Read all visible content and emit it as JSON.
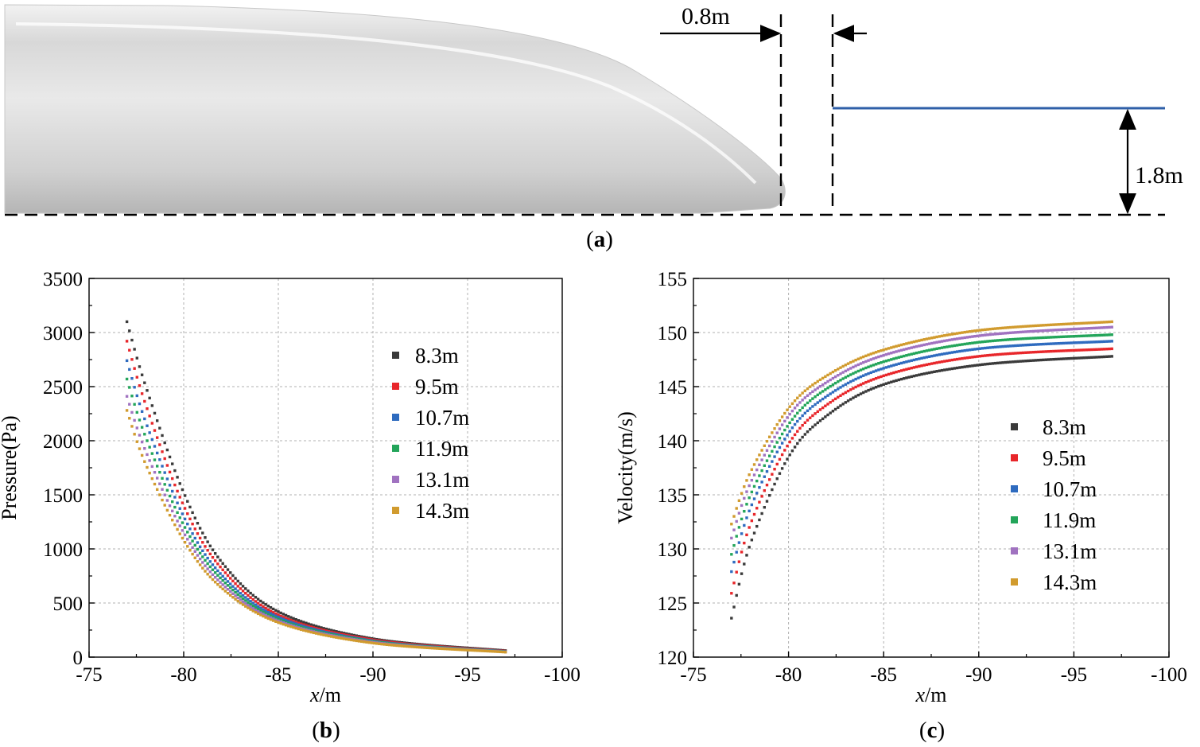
{
  "figure": {
    "panel_a": {
      "label": "a",
      "gap_dimension": "0.8m",
      "height_dimension": "1.8m",
      "colors": {
        "body_light": "#f4f4f4",
        "body_dark": "#bdbdbd",
        "line": "#2f5fa8"
      }
    },
    "panel_b": {
      "label": "b"
    },
    "panel_c": {
      "label": "c"
    }
  },
  "chart_data": [
    {
      "type": "scatter",
      "title": "",
      "xlabel_italic": "x",
      "xlabel_rest": "/m",
      "ylabel": "Pressure(Pa)",
      "xlim": [
        -75,
        -100
      ],
      "ylim": [
        0,
        3500
      ],
      "xticks": [
        -75,
        -80,
        -85,
        -90,
        -95,
        -100
      ],
      "yticks": [
        0,
        500,
        1000,
        1500,
        2000,
        2500,
        3000,
        3500
      ],
      "grid": true,
      "legend_position": "upper-right",
      "x_range": [
        -77,
        -97
      ],
      "series": [
        {
          "name": "8.3m",
          "color": "#3a3a3a",
          "x": [
            -77,
            -78,
            -80,
            -82,
            -85,
            -90,
            -97
          ],
          "y": [
            3100,
            2500,
            1520,
            880,
            420,
            170,
            60
          ]
        },
        {
          "name": "9.5m",
          "color": "#e8262a",
          "x": [
            -77,
            -78,
            -80,
            -82,
            -85,
            -90,
            -97
          ],
          "y": [
            2920,
            2330,
            1400,
            820,
            390,
            160,
            55
          ]
        },
        {
          "name": "10.7m",
          "color": "#2e6bbf",
          "x": [
            -77,
            -78,
            -80,
            -82,
            -85,
            -90,
            -97
          ],
          "y": [
            2740,
            2170,
            1300,
            760,
            370,
            150,
            52
          ]
        },
        {
          "name": "11.9m",
          "color": "#23a55a",
          "x": [
            -77,
            -78,
            -80,
            -82,
            -85,
            -90,
            -97
          ],
          "y": [
            2570,
            2030,
            1220,
            720,
            350,
            145,
            50
          ]
        },
        {
          "name": "13.1m",
          "color": "#a072c0",
          "x": [
            -77,
            -78,
            -80,
            -82,
            -85,
            -90,
            -97
          ],
          "y": [
            2410,
            1900,
            1150,
            680,
            335,
            138,
            48
          ]
        },
        {
          "name": "14.3m",
          "color": "#d19b2e",
          "x": [
            -77,
            -78,
            -80,
            -82,
            -85,
            -90,
            -97
          ],
          "y": [
            2280,
            1780,
            1080,
            640,
            320,
            130,
            46
          ]
        }
      ]
    },
    {
      "type": "scatter",
      "title": "",
      "xlabel_italic": "x",
      "xlabel_rest": "/m",
      "ylabel": "Velocity(m/s)",
      "xlim": [
        -75,
        -100
      ],
      "ylim": [
        120,
        155
      ],
      "xticks": [
        -75,
        -80,
        -85,
        -90,
        -95,
        -100
      ],
      "yticks": [
        120,
        125,
        130,
        135,
        140,
        145,
        150,
        155
      ],
      "grid": true,
      "legend_position": "center-right",
      "x_range": [
        -77,
        -97
      ],
      "series": [
        {
          "name": "8.3m",
          "color": "#3a3a3a",
          "x": [
            -77,
            -78,
            -80,
            -82,
            -85,
            -90,
            -97
          ],
          "y": [
            123.6,
            130.5,
            138.5,
            142.3,
            145.2,
            147.0,
            147.8
          ]
        },
        {
          "name": "9.5m",
          "color": "#e8262a",
          "x": [
            -77,
            -78,
            -80,
            -82,
            -85,
            -90,
            -97
          ],
          "y": [
            125.9,
            132.3,
            139.7,
            143.3,
            146.0,
            147.8,
            148.5
          ]
        },
        {
          "name": "10.7m",
          "color": "#2e6bbf",
          "x": [
            -77,
            -78,
            -80,
            -82,
            -85,
            -90,
            -97
          ],
          "y": [
            127.9,
            133.8,
            140.7,
            144.1,
            146.7,
            148.5,
            149.2
          ]
        },
        {
          "name": "11.9m",
          "color": "#23a55a",
          "x": [
            -77,
            -78,
            -80,
            -82,
            -85,
            -90,
            -97
          ],
          "y": [
            129.5,
            135.0,
            141.5,
            144.8,
            147.3,
            149.1,
            149.8
          ]
        },
        {
          "name": "13.1m",
          "color": "#a072c0",
          "x": [
            -77,
            -78,
            -80,
            -82,
            -85,
            -90,
            -97
          ],
          "y": [
            131.0,
            136.1,
            142.3,
            145.4,
            147.9,
            149.7,
            150.5
          ]
        },
        {
          "name": "14.3m",
          "color": "#d19b2e",
          "x": [
            -77,
            -78,
            -80,
            -82,
            -85,
            -90,
            -97
          ],
          "y": [
            132.3,
            137.1,
            143.0,
            146.0,
            148.4,
            150.2,
            151.0
          ]
        }
      ]
    }
  ]
}
